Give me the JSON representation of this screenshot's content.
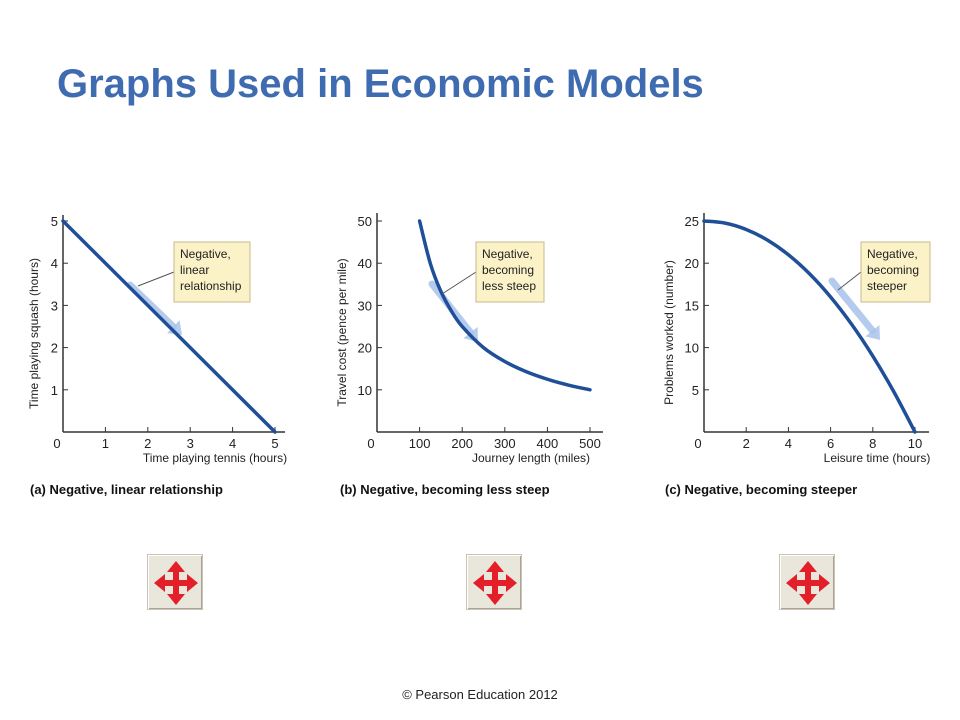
{
  "slide": {
    "title": "Graphs Used in Economic Models",
    "footer": "© Pearson Education 2012"
  },
  "colors": {
    "title": "#3f6bb0",
    "curve": "#1f4f98",
    "arrow": "#a9c3ea",
    "callout_fill": "#fbf2c8",
    "callout_border": "#c8b98a",
    "nav_button_arrow": "#e3202a"
  },
  "nav_buttons": [
    {
      "icon": "move-arrows-icon"
    },
    {
      "icon": "move-arrows-icon"
    },
    {
      "icon": "move-arrows-icon"
    }
  ],
  "chart_data": [
    {
      "type": "line",
      "caption": "(a) Negative, linear relationship",
      "xlabel": "Time playing tennis (hours)",
      "ylabel": "Time playing squash (hours)",
      "xlim": [
        0,
        5
      ],
      "ylim": [
        0,
        5
      ],
      "x_ticks": [
        "0",
        "1",
        "2",
        "3",
        "4",
        "5"
      ],
      "y_ticks": [
        "1",
        "2",
        "3",
        "4",
        "5"
      ],
      "x": [
        0,
        5
      ],
      "y": [
        5,
        0
      ],
      "annotation": [
        "Negative,",
        "linear",
        "relationship"
      ]
    },
    {
      "type": "line",
      "caption": "(b) Negative, becoming less steep",
      "xlabel": "Journey length (miles)",
      "ylabel": "Travel cost (pence per mile)",
      "xlim": [
        0,
        500
      ],
      "ylim": [
        0,
        50
      ],
      "x_ticks": [
        "0",
        "100",
        "200",
        "300",
        "400",
        "500"
      ],
      "y_ticks": [
        "10",
        "20",
        "30",
        "40",
        "50"
      ],
      "x": [
        100,
        125,
        150,
        175,
        200,
        250,
        300,
        350,
        400,
        450,
        500
      ],
      "y": [
        50,
        40,
        33.3,
        28.6,
        25,
        20,
        16.7,
        14.3,
        12.5,
        11.1,
        10
      ],
      "annotation": [
        "Negative,",
        "becoming",
        "less steep"
      ]
    },
    {
      "type": "line",
      "caption": "(c) Negative, becoming steeper",
      "xlabel": "Leisure time (hours)",
      "ylabel": "Problems worked (number)",
      "xlim": [
        0,
        10
      ],
      "ylim": [
        0,
        25
      ],
      "x_ticks": [
        "0",
        "2",
        "4",
        "6",
        "8",
        "10"
      ],
      "y_ticks": [
        "5",
        "10",
        "15",
        "20",
        "25"
      ],
      "x": [
        0,
        1,
        2,
        3,
        4,
        5,
        6,
        7,
        8,
        9,
        10
      ],
      "y": [
        25,
        24.75,
        24,
        22.75,
        21,
        18.75,
        16,
        12.75,
        9,
        4.75,
        0
      ],
      "annotation": [
        "Negative,",
        "becoming",
        "steeper"
      ]
    }
  ]
}
